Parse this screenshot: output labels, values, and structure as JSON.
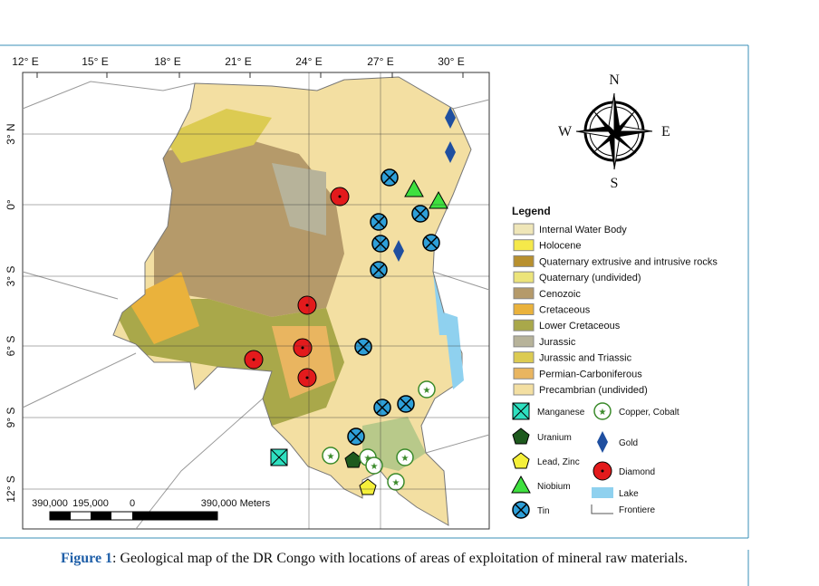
{
  "map": {
    "top_labels": [
      "12° E",
      "15° E",
      "18° E",
      "21° E",
      "24° E",
      "27° E",
      "30° E"
    ],
    "left_labels": [
      "3° N",
      "0°",
      "3° S",
      "6° S",
      "9° S",
      "12° S"
    ],
    "compass": {
      "n": "N",
      "e": "E",
      "s": "S",
      "w": "W"
    },
    "scale": [
      "390,000",
      "195,000",
      "0",
      "390,000 Meters"
    ],
    "legend": {
      "title": "Legend",
      "geology": [
        {
          "label": "Internal Water Body",
          "color": "#efe6b8"
        },
        {
          "label": "Holocene",
          "color": "#f5e94a"
        },
        {
          "label": "Quaternary extrusive and intrusive rocks",
          "color": "#b8902e"
        },
        {
          "label": "Quaternary (undivided)",
          "color": "#ece47a"
        },
        {
          "label": "Cenozoic",
          "color": "#b59a6a"
        },
        {
          "label": "Cretaceous",
          "color": "#eab23c"
        },
        {
          "label": "Lower Cretaceous",
          "color": "#a9a84a"
        },
        {
          "label": "Jurassic",
          "color": "#b7b39a"
        },
        {
          "label": "Jurassic and Triassic",
          "color": "#dccb52"
        },
        {
          "label": "Permian-Carboniferous",
          "color": "#e9b560"
        },
        {
          "label": "Precambrian (undivided)",
          "color": "#f3dfa2"
        }
      ],
      "minerals": {
        "manganese": "Manganese",
        "uranium": "Uranium",
        "lead_zinc": "Lead, Zinc",
        "niobium": "Niobium",
        "tin": "Tin",
        "copper_cobalt": "Copper, Cobalt",
        "gold": "Gold",
        "diamond": "Diamond",
        "lake": "Lake",
        "frontiere": "Frontiere"
      }
    }
  },
  "caption": {
    "label": "Figure 1",
    "text": ": Geological map of the DR Congo with locations of areas of exploitation of mineral raw materials."
  }
}
